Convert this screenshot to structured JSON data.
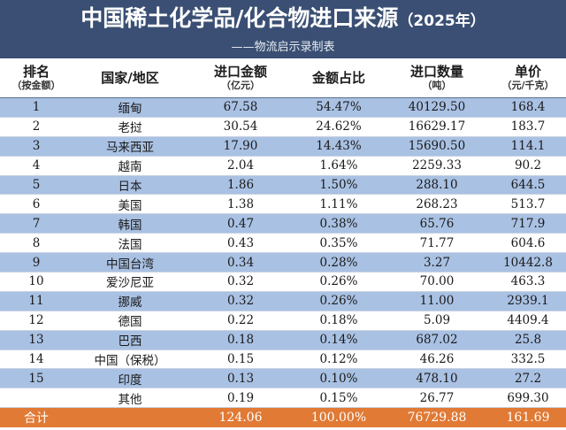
{
  "title": "中国稀土化学品/化合物进口来源",
  "title_year": "（2025年）",
  "subtitle": "——物流启示录制表",
  "columns": [
    {
      "main": "排名",
      "sub": "（按金额）"
    },
    {
      "main": "国家/地区",
      "sub": ""
    },
    {
      "main": "进口金额",
      "sub": "（亿元）"
    },
    {
      "main": "金额占比",
      "sub": ""
    },
    {
      "main": "进口数量",
      "sub": "（吨）"
    },
    {
      "main": "单价",
      "sub": "（元/千克）"
    }
  ],
  "rows": [
    {
      "rank": "1",
      "country": "缅甸",
      "amount": "67.58",
      "share": "54.47%",
      "qty": "40129.50",
      "price": "168.4"
    },
    {
      "rank": "2",
      "country": "老挝",
      "amount": "30.54",
      "share": "24.62%",
      "qty": "16629.17",
      "price": "183.7"
    },
    {
      "rank": "3",
      "country": "马来西亚",
      "amount": "17.90",
      "share": "14.43%",
      "qty": "15690.50",
      "price": "114.1"
    },
    {
      "rank": "4",
      "country": "越南",
      "amount": "2.04",
      "share": "1.64%",
      "qty": "2259.33",
      "price": "90.2"
    },
    {
      "rank": "5",
      "country": "日本",
      "amount": "1.86",
      "share": "1.50%",
      "qty": "288.10",
      "price": "644.5"
    },
    {
      "rank": "6",
      "country": "美国",
      "amount": "1.38",
      "share": "1.11%",
      "qty": "268.23",
      "price": "513.7"
    },
    {
      "rank": "7",
      "country": "韩国",
      "amount": "0.47",
      "share": "0.38%",
      "qty": "65.76",
      "price": "717.9"
    },
    {
      "rank": "8",
      "country": "法国",
      "amount": "0.43",
      "share": "0.35%",
      "qty": "71.77",
      "price": "604.6"
    },
    {
      "rank": "9",
      "country": "中国台湾",
      "amount": "0.34",
      "share": "0.28%",
      "qty": "3.27",
      "price": "10442.8"
    },
    {
      "rank": "10",
      "country": "爱沙尼亚",
      "amount": "0.32",
      "share": "0.26%",
      "qty": "70.00",
      "price": "463.3"
    },
    {
      "rank": "11",
      "country": "挪威",
      "amount": "0.32",
      "share": "0.26%",
      "qty": "11.00",
      "price": "2939.1"
    },
    {
      "rank": "12",
      "country": "德国",
      "amount": "0.22",
      "share": "0.18%",
      "qty": "5.09",
      "price": "4409.4"
    },
    {
      "rank": "13",
      "country": "巴西",
      "amount": "0.18",
      "share": "0.14%",
      "qty": "687.02",
      "price": "25.8"
    },
    {
      "rank": "14",
      "country": "中国（保税）",
      "amount": "0.15",
      "share": "0.12%",
      "qty": "46.26",
      "price": "332.5"
    },
    {
      "rank": "15",
      "country": "印度",
      "amount": "0.13",
      "share": "0.10%",
      "qty": "478.10",
      "price": "27.2"
    }
  ],
  "other": {
    "country": "其他",
    "amount": "0.19",
    "share": "0.15%",
    "qty": "26.77",
    "price": "699.30"
  },
  "total": {
    "label": "合计",
    "amount": "124.06",
    "share": "100.00%",
    "qty": "76729.88",
    "price": "161.69"
  },
  "colors": {
    "header_bg": "#3a4f73",
    "stripe": "#a9c1e3",
    "total_bg": "#e07a35"
  }
}
